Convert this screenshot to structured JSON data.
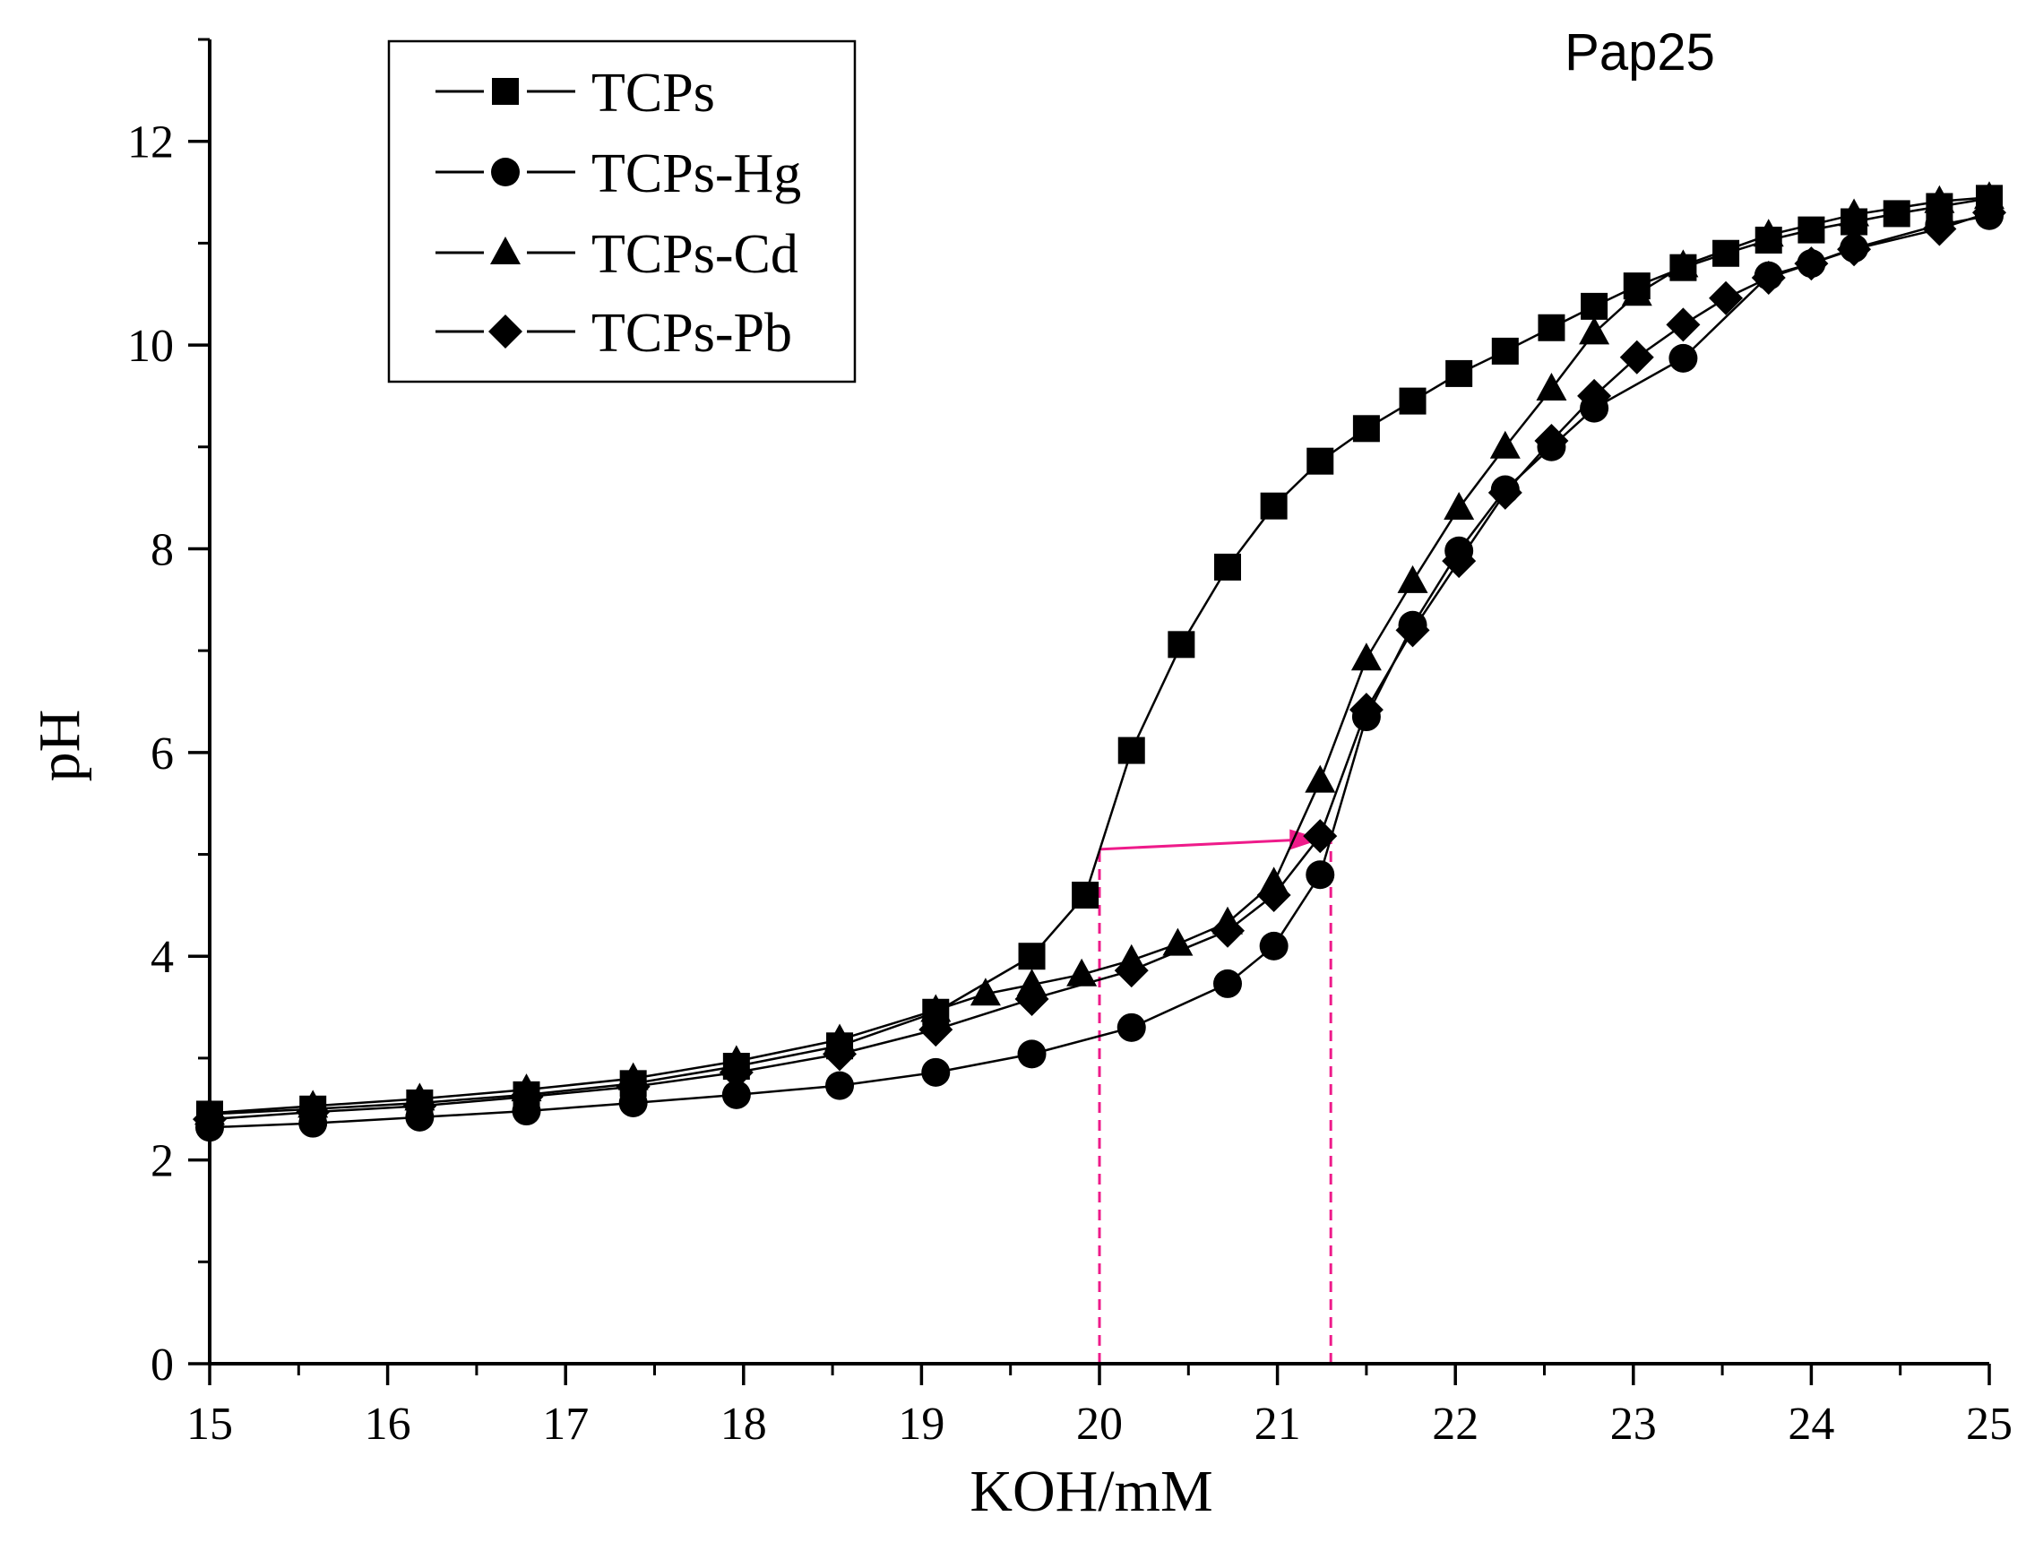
{
  "chart_data": {
    "type": "line",
    "title": "Pap25",
    "xlabel": "KOH/mM",
    "ylabel": "pH",
    "xlim": [
      15,
      25
    ],
    "ylim": [
      0,
      13
    ],
    "x_ticks": [
      15,
      16,
      17,
      18,
      19,
      20,
      21,
      22,
      23,
      24,
      25
    ],
    "y_ticks": [
      0,
      2,
      4,
      6,
      8,
      10,
      12
    ],
    "x_tick_labels": [
      "15",
      "16",
      "17",
      "18",
      "19",
      "20",
      "21",
      "22",
      "23",
      "24",
      "25"
    ],
    "y_tick_labels": [
      "0",
      "2",
      "4",
      "6",
      "8",
      "10",
      "12"
    ],
    "grid": false,
    "legend_position": "top-left",
    "series": [
      {
        "name": "TCPs",
        "marker": "square",
        "x": [
          15.0,
          15.58,
          16.18,
          16.78,
          17.38,
          17.96,
          18.54,
          19.08,
          19.62,
          19.92,
          20.18,
          20.46,
          20.72,
          20.98,
          21.24,
          21.5,
          21.76,
          22.02,
          22.28,
          22.54,
          22.78,
          23.02,
          23.28,
          23.52,
          23.76,
          24.0,
          24.24,
          24.48,
          24.72,
          25.0
        ],
        "y": [
          2.45,
          2.5,
          2.56,
          2.64,
          2.75,
          2.92,
          3.12,
          3.45,
          4.0,
          4.6,
          6.02,
          7.06,
          7.82,
          8.42,
          8.86,
          9.18,
          9.45,
          9.72,
          9.94,
          10.17,
          10.38,
          10.58,
          10.76,
          10.9,
          11.03,
          11.13,
          11.21,
          11.29,
          11.36,
          11.44
        ]
      },
      {
        "name": "TCPs-Hg",
        "marker": "circle",
        "x": [
          15.0,
          15.58,
          16.18,
          16.78,
          17.38,
          17.96,
          18.54,
          19.08,
          19.62,
          20.18,
          20.72,
          20.98,
          21.24,
          21.5,
          21.76,
          22.02,
          22.28,
          22.54,
          22.78,
          23.28,
          23.76,
          24.0,
          24.24,
          24.72,
          25.0
        ],
        "y": [
          2.32,
          2.36,
          2.42,
          2.48,
          2.56,
          2.64,
          2.73,
          2.86,
          3.04,
          3.3,
          3.73,
          4.1,
          4.8,
          6.35,
          7.25,
          7.98,
          8.58,
          9.0,
          9.38,
          9.87,
          10.68,
          10.8,
          10.95,
          11.18,
          11.27
        ]
      },
      {
        "name": "TCPs-Cd",
        "marker": "triangle",
        "x": [
          15.0,
          15.58,
          16.18,
          16.78,
          17.38,
          17.96,
          18.54,
          19.08,
          19.36,
          19.62,
          19.9,
          20.18,
          20.44,
          20.72,
          20.98,
          21.24,
          21.5,
          21.76,
          22.02,
          22.28,
          22.54,
          22.78,
          23.02,
          23.28,
          23.76,
          24.24,
          24.72,
          25.0
        ],
        "y": [
          2.46,
          2.53,
          2.6,
          2.69,
          2.8,
          2.97,
          3.18,
          3.47,
          3.63,
          3.72,
          3.82,
          3.96,
          4.12,
          4.33,
          4.72,
          5.72,
          6.92,
          7.68,
          8.4,
          9.0,
          9.57,
          10.12,
          10.5,
          10.78,
          11.08,
          11.28,
          11.41,
          11.45
        ]
      },
      {
        "name": "TCPs-Pb",
        "marker": "diamond",
        "x": [
          15.0,
          15.58,
          16.18,
          16.78,
          17.38,
          17.96,
          18.54,
          19.08,
          19.62,
          20.18,
          20.72,
          20.98,
          21.24,
          21.5,
          21.76,
          22.02,
          22.28,
          22.54,
          22.78,
          23.02,
          23.28,
          23.52,
          23.76,
          24.0,
          24.24,
          24.72,
          25.0
        ],
        "y": [
          2.4,
          2.47,
          2.53,
          2.62,
          2.72,
          2.86,
          3.04,
          3.28,
          3.58,
          3.86,
          4.25,
          4.6,
          5.18,
          6.42,
          7.2,
          7.88,
          8.55,
          9.06,
          9.5,
          9.88,
          10.2,
          10.46,
          10.66,
          10.8,
          10.94,
          11.14,
          11.3
        ]
      }
    ],
    "annotations": {
      "color": "#ee1b8a",
      "vlines": [
        {
          "x": 20.0,
          "y_from": 0,
          "y_to": 5.05
        },
        {
          "x": 21.3,
          "y_from": 0,
          "y_to": 5.15
        }
      ],
      "arrow": {
        "x_from": 20.0,
        "y_from": 5.05,
        "x_to": 21.25,
        "y_to": 5.15
      }
    }
  }
}
